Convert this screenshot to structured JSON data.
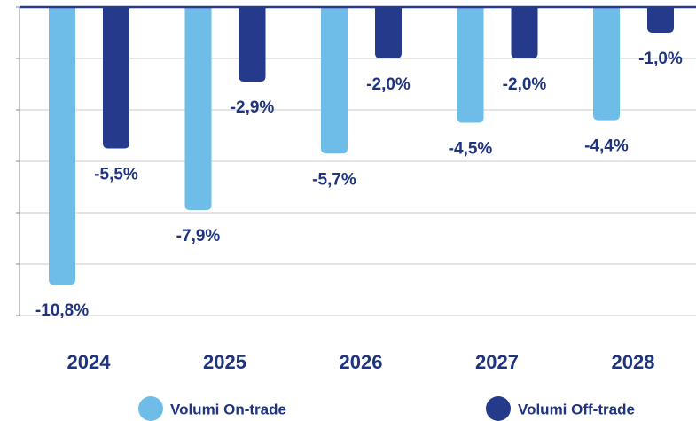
{
  "chart_data": {
    "type": "bar",
    "categories": [
      "2024",
      "2025",
      "2026",
      "2027",
      "2028"
    ],
    "series": [
      {
        "name": "Volumi On-trade",
        "color": "#6dbde8",
        "values": [
          -10.8,
          -7.9,
          -5.7,
          -4.5,
          -4.4
        ],
        "value_labels": [
          "-10,8%",
          "-7,9%",
          "-5,7%",
          "-4,5%",
          "-4,4%"
        ]
      },
      {
        "name": "Volumi Off-trade",
        "color": "#253a8a",
        "values": [
          -5.5,
          -2.9,
          -2.0,
          -2.0,
          -1.0
        ],
        "value_labels": [
          "-5,5%",
          "-2,9%",
          "-2,0%",
          "-2,0%",
          "-1,0%"
        ]
      }
    ],
    "ylim": [
      -12,
      0
    ],
    "yticks": [
      0,
      -2,
      -4,
      -6,
      -8,
      -10,
      -12
    ],
    "grid": true
  }
}
